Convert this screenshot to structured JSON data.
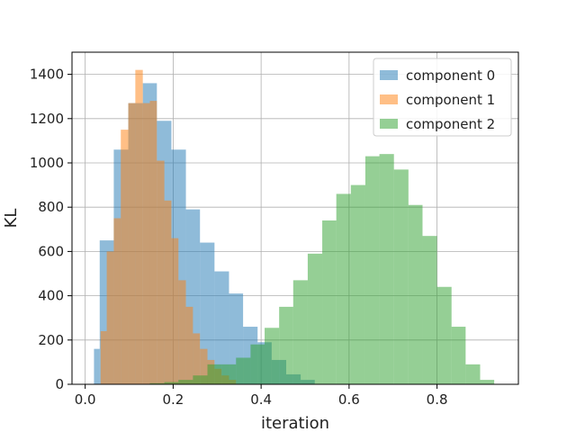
{
  "chart_data": {
    "type": "bar",
    "subtype": "overlaid-histogram",
    "xlabel": "iteration",
    "ylabel": "KL",
    "xlim": [
      -0.03,
      0.985
    ],
    "ylim": [
      0,
      1500
    ],
    "xticks": [
      0.0,
      0.2,
      0.4,
      0.6,
      0.8
    ],
    "xtick_labels": [
      "0.0",
      "0.2",
      "0.4",
      "0.6",
      "0.8"
    ],
    "yticks": [
      0,
      200,
      400,
      600,
      800,
      1000,
      1200,
      1400
    ],
    "ytick_labels": [
      "0",
      "200",
      "400",
      "600",
      "800",
      "1000",
      "1200",
      "1400"
    ],
    "grid": true,
    "legend_position": "top-right",
    "bar_alpha": 0.5,
    "series": [
      {
        "name": "component 0",
        "color": "#1f77b4",
        "bins": [
          {
            "x0": 0.02,
            "x1": 0.033,
            "value": 160
          },
          {
            "x0": 0.033,
            "x1": 0.065,
            "value": 650
          },
          {
            "x0": 0.065,
            "x1": 0.098,
            "value": 1060
          },
          {
            "x0": 0.098,
            "x1": 0.131,
            "value": 1270
          },
          {
            "x0": 0.131,
            "x1": 0.163,
            "value": 1360
          },
          {
            "x0": 0.163,
            "x1": 0.196,
            "value": 1190
          },
          {
            "x0": 0.196,
            "x1": 0.229,
            "value": 1060
          },
          {
            "x0": 0.229,
            "x1": 0.261,
            "value": 790
          },
          {
            "x0": 0.261,
            "x1": 0.294,
            "value": 640
          },
          {
            "x0": 0.294,
            "x1": 0.327,
            "value": 510
          },
          {
            "x0": 0.327,
            "x1": 0.359,
            "value": 410
          },
          {
            "x0": 0.359,
            "x1": 0.392,
            "value": 260
          },
          {
            "x0": 0.392,
            "x1": 0.424,
            "value": 190
          },
          {
            "x0": 0.424,
            "x1": 0.457,
            "value": 110
          },
          {
            "x0": 0.457,
            "x1": 0.49,
            "value": 45
          },
          {
            "x0": 0.49,
            "x1": 0.522,
            "value": 20
          }
        ]
      },
      {
        "name": "component 1",
        "color": "#ff7f0e",
        "bins": [
          {
            "x0": 0.035,
            "x1": 0.049,
            "value": 240
          },
          {
            "x0": 0.049,
            "x1": 0.065,
            "value": 600
          },
          {
            "x0": 0.065,
            "x1": 0.081,
            "value": 750
          },
          {
            "x0": 0.081,
            "x1": 0.098,
            "value": 1150
          },
          {
            "x0": 0.098,
            "x1": 0.114,
            "value": 1270
          },
          {
            "x0": 0.114,
            "x1": 0.131,
            "value": 1420
          },
          {
            "x0": 0.131,
            "x1": 0.147,
            "value": 1270
          },
          {
            "x0": 0.147,
            "x1": 0.163,
            "value": 1280
          },
          {
            "x0": 0.163,
            "x1": 0.18,
            "value": 1010
          },
          {
            "x0": 0.18,
            "x1": 0.196,
            "value": 830
          },
          {
            "x0": 0.196,
            "x1": 0.212,
            "value": 660
          },
          {
            "x0": 0.212,
            "x1": 0.229,
            "value": 470
          },
          {
            "x0": 0.229,
            "x1": 0.245,
            "value": 350
          },
          {
            "x0": 0.245,
            "x1": 0.261,
            "value": 230
          },
          {
            "x0": 0.261,
            "x1": 0.278,
            "value": 160
          },
          {
            "x0": 0.278,
            "x1": 0.294,
            "value": 110
          },
          {
            "x0": 0.294,
            "x1": 0.31,
            "value": 70
          },
          {
            "x0": 0.31,
            "x1": 0.327,
            "value": 40
          },
          {
            "x0": 0.327,
            "x1": 0.343,
            "value": 20
          }
        ]
      },
      {
        "name": "component 2",
        "color": "#2ca02c",
        "bins": [
          {
            "x0": 0.147,
            "x1": 0.18,
            "value": 5
          },
          {
            "x0": 0.18,
            "x1": 0.212,
            "value": 10
          },
          {
            "x0": 0.212,
            "x1": 0.245,
            "value": 20
          },
          {
            "x0": 0.245,
            "x1": 0.278,
            "value": 40
          },
          {
            "x0": 0.278,
            "x1": 0.31,
            "value": 90
          },
          {
            "x0": 0.31,
            "x1": 0.343,
            "value": 90
          },
          {
            "x0": 0.343,
            "x1": 0.376,
            "value": 120
          },
          {
            "x0": 0.376,
            "x1": 0.408,
            "value": 180
          },
          {
            "x0": 0.408,
            "x1": 0.441,
            "value": 255
          },
          {
            "x0": 0.441,
            "x1": 0.473,
            "value": 350
          },
          {
            "x0": 0.473,
            "x1": 0.506,
            "value": 470
          },
          {
            "x0": 0.506,
            "x1": 0.539,
            "value": 590
          },
          {
            "x0": 0.539,
            "x1": 0.571,
            "value": 740
          },
          {
            "x0": 0.571,
            "x1": 0.604,
            "value": 860
          },
          {
            "x0": 0.604,
            "x1": 0.637,
            "value": 900
          },
          {
            "x0": 0.637,
            "x1": 0.669,
            "value": 1030
          },
          {
            "x0": 0.669,
            "x1": 0.702,
            "value": 1040
          },
          {
            "x0": 0.702,
            "x1": 0.735,
            "value": 970
          },
          {
            "x0": 0.735,
            "x1": 0.767,
            "value": 810
          },
          {
            "x0": 0.767,
            "x1": 0.8,
            "value": 670
          },
          {
            "x0": 0.8,
            "x1": 0.833,
            "value": 440
          },
          {
            "x0": 0.833,
            "x1": 0.865,
            "value": 260
          },
          {
            "x0": 0.865,
            "x1": 0.898,
            "value": 90
          },
          {
            "x0": 0.898,
            "x1": 0.93,
            "value": 20
          }
        ]
      }
    ]
  }
}
